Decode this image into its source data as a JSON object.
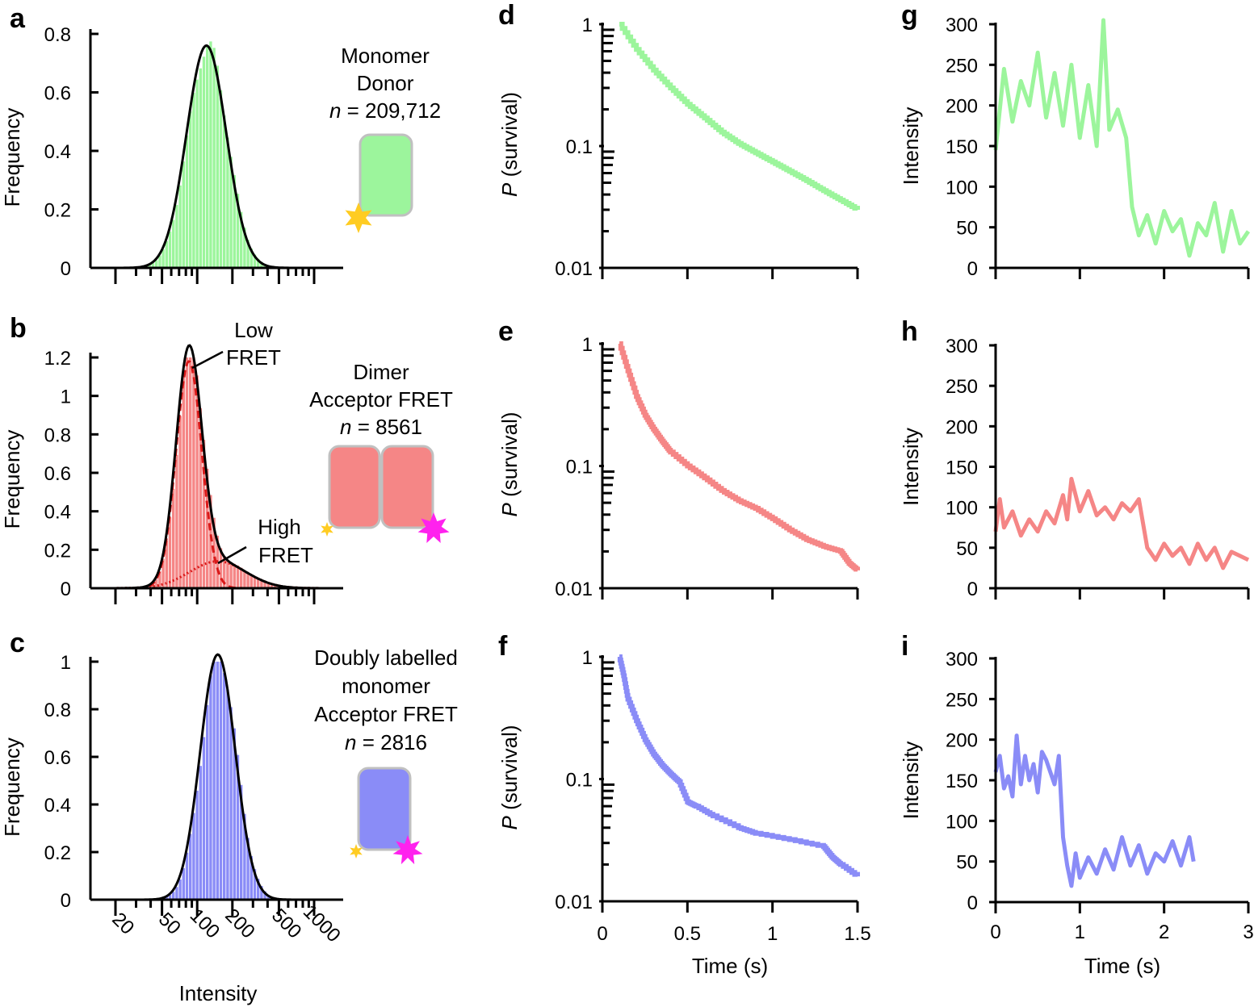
{
  "colors": {
    "green": "#9cf59c",
    "red": "#f58686",
    "blue": "#8a8cf7",
    "fit_black": "#000000",
    "fit_red": "#d91a1a",
    "donor_star": "#ffcc22",
    "acceptor_star": "#ff22ee"
  },
  "chart_data": [
    {
      "panel": "a",
      "type": "bar",
      "series_color": "green",
      "title": "",
      "xlabel": "",
      "ylabel": "Frequency",
      "xscale": "log",
      "xlim": [
        10,
        1500
      ],
      "ylim": [
        0,
        0.8
      ],
      "yticks": [
        "0",
        "0.2",
        "0.4",
        "0.6",
        "0.8"
      ],
      "ytick_values": [
        0,
        0.2,
        0.4,
        0.6,
        0.8
      ],
      "annotation_lines": [
        "Monomer",
        "Donor",
        "n = 209,712"
      ],
      "fit": {
        "peak_intensity": 120,
        "peak_frequency": 0.76,
        "log_sigma": 0.17
      }
    },
    {
      "panel": "b",
      "type": "bar",
      "series_color": "red",
      "title": "",
      "xlabel": "",
      "ylabel": "Frequency",
      "xscale": "log",
      "xlim": [
        10,
        1500
      ],
      "ylim": [
        0,
        1.2
      ],
      "yticks": [
        "0",
        "0.2",
        "0.4",
        "0.6",
        "0.8",
        "1",
        "1.2"
      ],
      "ytick_values": [
        0,
        0.2,
        0.4,
        0.6,
        0.8,
        1.0,
        1.2
      ],
      "annotation_lines": [
        "Dimer",
        "Acceptor FRET",
        "n = 8561"
      ],
      "label_low": [
        "Low",
        "FRET"
      ],
      "label_high": [
        "High",
        "FRET"
      ],
      "fit": {
        "low_peak_intensity": 85,
        "low_peak_frequency": 1.18,
        "low_log_sigma": 0.11,
        "high_peak_intensity": 150,
        "high_peak_frequency": 0.14,
        "high_log_sigma": 0.24
      }
    },
    {
      "panel": "c",
      "type": "bar",
      "series_color": "blue",
      "title": "",
      "xlabel": "Intensity",
      "ylabel": "Frequency",
      "xscale": "log",
      "xlim": [
        10,
        1500
      ],
      "ylim": [
        0,
        1.0
      ],
      "yticks": [
        "0",
        "0.2",
        "0.4",
        "0.6",
        "0.8",
        "1"
      ],
      "ytick_values": [
        0,
        0.2,
        0.4,
        0.6,
        0.8,
        1.0
      ],
      "xticks": [
        "20",
        "50",
        "100",
        "200",
        "500",
        "1000"
      ],
      "xtick_values": [
        20,
        50,
        100,
        200,
        500,
        1000
      ],
      "annotation_lines": [
        "Doubly labelled",
        "monomer",
        "Acceptor FRET",
        "n = 2816"
      ],
      "fit": {
        "peak_intensity": 150,
        "peak_frequency": 1.03,
        "log_sigma": 0.15
      }
    },
    {
      "panel": "d",
      "type": "line",
      "series_color": "green",
      "xlabel": "",
      "ylabel": "P (survival)",
      "yscale": "log",
      "xlim": [
        0,
        1.5
      ],
      "ylim": [
        0.01,
        1
      ],
      "yticks": [
        "0.01",
        "0.1",
        "1"
      ],
      "ytick_values": [
        0.01,
        0.1,
        1
      ],
      "x": [
        0.1,
        0.2,
        0.3,
        0.4,
        0.5,
        0.6,
        0.7,
        0.8,
        0.9,
        1.0,
        1.1,
        1.2,
        1.3,
        1.4,
        1.5
      ],
      "y": [
        1.0,
        0.62,
        0.42,
        0.3,
        0.22,
        0.17,
        0.13,
        0.105,
        0.088,
        0.074,
        0.062,
        0.052,
        0.043,
        0.036,
        0.03
      ]
    },
    {
      "panel": "e",
      "type": "line",
      "series_color": "red",
      "xlabel": "",
      "ylabel": "P (survival)",
      "yscale": "log",
      "xlim": [
        0,
        1.5
      ],
      "ylim": [
        0.01,
        1
      ],
      "yticks": [
        "0.01",
        "0.1",
        "1"
      ],
      "ytick_values": [
        0.01,
        0.1,
        1
      ],
      "x": [
        0.1,
        0.15,
        0.2,
        0.25,
        0.3,
        0.35,
        0.4,
        0.5,
        0.6,
        0.7,
        0.8,
        0.9,
        1.0,
        1.1,
        1.2,
        1.3,
        1.4,
        1.45,
        1.5
      ],
      "y": [
        1.0,
        0.6,
        0.37,
        0.26,
        0.2,
        0.16,
        0.13,
        0.1,
        0.08,
        0.063,
        0.052,
        0.045,
        0.037,
        0.03,
        0.025,
        0.022,
        0.02,
        0.016,
        0.014
      ]
    },
    {
      "panel": "f",
      "type": "line",
      "series_color": "blue",
      "xlabel": "Time (s)",
      "ylabel": "P (survival)",
      "yscale": "log",
      "xlim": [
        0,
        1.5
      ],
      "ylim": [
        0.01,
        1
      ],
      "yticks": [
        "0.01",
        "0.1",
        "1"
      ],
      "ytick_values": [
        0.01,
        0.1,
        1
      ],
      "xticks": [
        "0",
        "0.5",
        "1",
        "1.5"
      ],
      "xtick_values": [
        0,
        0.5,
        1,
        1.5
      ],
      "x": [
        0.1,
        0.125,
        0.15,
        0.2,
        0.25,
        0.3,
        0.35,
        0.4,
        0.45,
        0.5,
        0.55,
        0.65,
        0.8,
        0.9,
        1.1,
        1.3,
        1.35,
        1.4,
        1.5
      ],
      "y": [
        1.0,
        0.7,
        0.45,
        0.3,
        0.21,
        0.16,
        0.13,
        0.11,
        0.095,
        0.065,
        0.06,
        0.05,
        0.04,
        0.036,
        0.032,
        0.028,
        0.023,
        0.02,
        0.016
      ]
    },
    {
      "panel": "g",
      "type": "line",
      "series_color": "green",
      "xlabel": "",
      "ylabel": "Intensity",
      "xlim": [
        0,
        3
      ],
      "ylim": [
        0,
        300
      ],
      "yticks": [
        "0",
        "50",
        "100",
        "150",
        "200",
        "250",
        "300"
      ],
      "ytick_values": [
        0,
        50,
        100,
        150,
        200,
        250,
        300
      ],
      "x": [
        0.0,
        0.1,
        0.2,
        0.3,
        0.4,
        0.5,
        0.6,
        0.7,
        0.8,
        0.9,
        1.0,
        1.1,
        1.2,
        1.28,
        1.35,
        1.45,
        1.55,
        1.62,
        1.7,
        1.8,
        1.9,
        2.0,
        2.1,
        2.2,
        2.3,
        2.4,
        2.5,
        2.6,
        2.7,
        2.8,
        2.9,
        3.0
      ],
      "y": [
        145,
        245,
        180,
        230,
        200,
        265,
        185,
        240,
        175,
        250,
        160,
        225,
        150,
        305,
        170,
        195,
        160,
        75,
        40,
        65,
        30,
        70,
        45,
        60,
        15,
        55,
        40,
        80,
        20,
        70,
        30,
        45
      ]
    },
    {
      "panel": "h",
      "type": "line",
      "series_color": "red",
      "xlabel": "",
      "ylabel": "Intensity",
      "xlim": [
        0,
        3
      ],
      "ylim": [
        0,
        300
      ],
      "yticks": [
        "0",
        "50",
        "100",
        "150",
        "200",
        "250",
        "300"
      ],
      "ytick_values": [
        0,
        50,
        100,
        150,
        200,
        250,
        300
      ],
      "x": [
        0.0,
        0.05,
        0.1,
        0.2,
        0.3,
        0.4,
        0.5,
        0.6,
        0.7,
        0.8,
        0.85,
        0.9,
        1.0,
        1.1,
        1.2,
        1.3,
        1.4,
        1.5,
        1.6,
        1.7,
        1.8,
        1.9,
        2.0,
        2.1,
        2.2,
        2.3,
        2.4,
        2.5,
        2.6,
        2.7,
        2.8,
        2.9,
        3.0
      ],
      "y": [
        70,
        110,
        75,
        95,
        65,
        85,
        70,
        95,
        80,
        115,
        85,
        135,
        95,
        120,
        90,
        100,
        85,
        105,
        95,
        110,
        50,
        35,
        55,
        40,
        50,
        30,
        55,
        35,
        50,
        25,
        45,
        40,
        35
      ]
    },
    {
      "panel": "i",
      "type": "line",
      "series_color": "blue",
      "xlabel": "Time (s)",
      "ylabel": "Intensity",
      "xlim": [
        0,
        3
      ],
      "ylim": [
        0,
        300
      ],
      "yticks": [
        "0",
        "50",
        "100",
        "150",
        "200",
        "250",
        "300"
      ],
      "ytick_values": [
        0,
        50,
        100,
        150,
        200,
        250,
        300
      ],
      "xticks": [
        "0",
        "1",
        "2",
        "3"
      ],
      "xtick_values": [
        0,
        1,
        2,
        3
      ],
      "x": [
        0.0,
        0.05,
        0.1,
        0.15,
        0.2,
        0.25,
        0.3,
        0.35,
        0.4,
        0.45,
        0.5,
        0.55,
        0.6,
        0.65,
        0.7,
        0.75,
        0.8,
        0.85,
        0.9,
        0.95,
        1.0,
        1.1,
        1.2,
        1.3,
        1.4,
        1.5,
        1.6,
        1.7,
        1.8,
        1.9,
        2.0,
        2.1,
        2.2,
        2.3,
        2.35
      ],
      "y": [
        160,
        180,
        140,
        155,
        130,
        205,
        145,
        180,
        150,
        170,
        135,
        185,
        175,
        160,
        145,
        180,
        80,
        45,
        20,
        60,
        30,
        55,
        35,
        65,
        40,
        80,
        45,
        70,
        35,
        60,
        50,
        75,
        45,
        80,
        50
      ]
    }
  ],
  "panel_letters": [
    "a",
    "b",
    "c",
    "d",
    "e",
    "f",
    "g",
    "h",
    "i"
  ]
}
